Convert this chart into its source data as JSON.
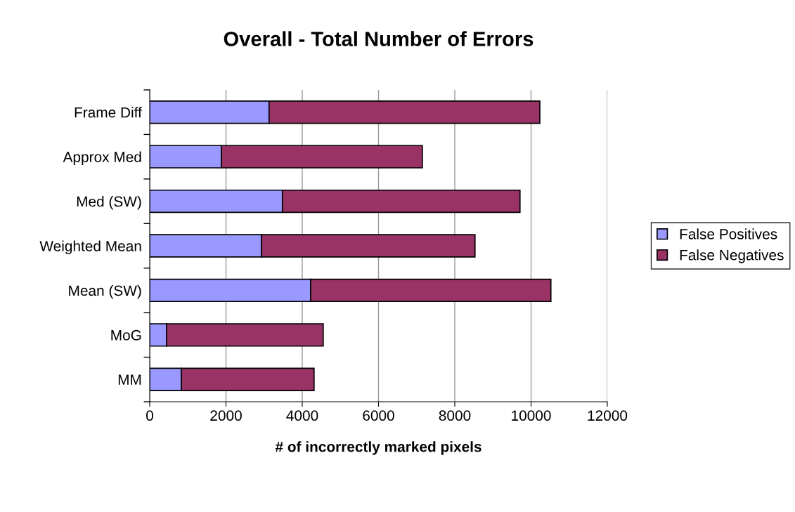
{
  "chart_data": {
    "type": "bar",
    "orientation": "horizontal",
    "stacked": true,
    "title": "Overall - Total Number of Errors",
    "xlabel": "# of incorrectly marked pixels",
    "categories": [
      "Frame Diff",
      "Approx Med",
      "Med (SW)",
      "Weighted Mean",
      "Mean (SW)",
      "MoG",
      "MM"
    ],
    "series": [
      {
        "name": "False Positives",
        "color": "#9999ff",
        "values": [
          3130,
          1880,
          3480,
          2930,
          4220,
          440,
          830
        ]
      },
      {
        "name": "False Negatives",
        "color": "#993366",
        "values": [
          7100,
          5270,
          6230,
          5600,
          6300,
          4110,
          3480
        ]
      }
    ],
    "xlim": [
      0,
      12000
    ],
    "xticks": [
      0,
      2000,
      4000,
      6000,
      8000,
      10000,
      12000
    ],
    "grid": "x",
    "legend": "right"
  }
}
